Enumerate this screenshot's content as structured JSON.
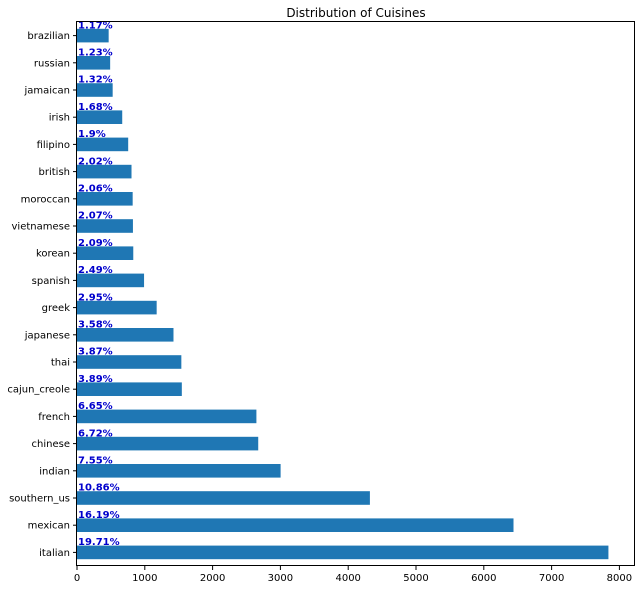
{
  "chart_data": {
    "type": "bar",
    "orientation": "horizontal",
    "title": "Distribution of Cuisines",
    "xlabel": "",
    "ylabel": "",
    "categories": [
      "italian",
      "mexican",
      "southern_us",
      "indian",
      "chinese",
      "french",
      "cajun_creole",
      "thai",
      "japanese",
      "greek",
      "spanish",
      "korean",
      "vietnamese",
      "moroccan",
      "british",
      "filipino",
      "irish",
      "jamaican",
      "russian",
      "brazilian"
    ],
    "values": [
      7838,
      6438,
      4320,
      3003,
      2673,
      2646,
      1546,
      1539,
      1423,
      1175,
      989,
      830,
      825,
      821,
      804,
      755,
      667,
      526,
      489,
      467
    ],
    "percent_labels": [
      "19.71%",
      "16.19%",
      "10.86%",
      "7.55%",
      "6.72%",
      "6.65%",
      "3.89%",
      "3.87%",
      "3.58%",
      "2.95%",
      "2.49%",
      "2.09%",
      "2.07%",
      "2.06%",
      "2.02%",
      "1.9%",
      "1.68%",
      "1.32%",
      "1.23%",
      "1.17%"
    ],
    "xlim": [
      0,
      8230
    ],
    "xticks": [
      0,
      1000,
      2000,
      3000,
      4000,
      5000,
      6000,
      7000,
      8000
    ],
    "grid": false,
    "legend": "none",
    "bar_color": "#1f77b4",
    "label_color": "#0000cc"
  }
}
